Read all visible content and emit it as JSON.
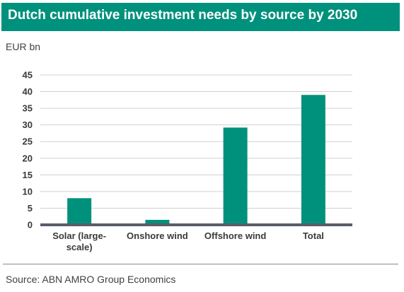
{
  "header": {
    "title": "Dutch cumulative investment needs by source by 2030"
  },
  "chart_data": {
    "type": "bar",
    "title": "Dutch cumulative investment needs by source by 2030",
    "ylabel": "EUR bn",
    "xlabel": "",
    "categories": [
      "Solar (large-scale)",
      "Onshore wind",
      "Offshore wind",
      "Total"
    ],
    "category_label_lines": [
      [
        "Solar (large-",
        "scale)"
      ],
      [
        "Onshore wind"
      ],
      [
        "Offshore wind"
      ],
      [
        "Total"
      ]
    ],
    "values": [
      8,
      1.5,
      29.2,
      39
    ],
    "ylim": [
      0,
      45
    ],
    "yticks": [
      0,
      5,
      10,
      15,
      20,
      25,
      30,
      35,
      40,
      45
    ],
    "grid": true,
    "legend": "none",
    "bar_color": "#00917c",
    "axis_color": "#595d6b",
    "grid_color": "#d0d0d0"
  },
  "footer": {
    "source": "Source: ABN AMRO Group Economics"
  }
}
